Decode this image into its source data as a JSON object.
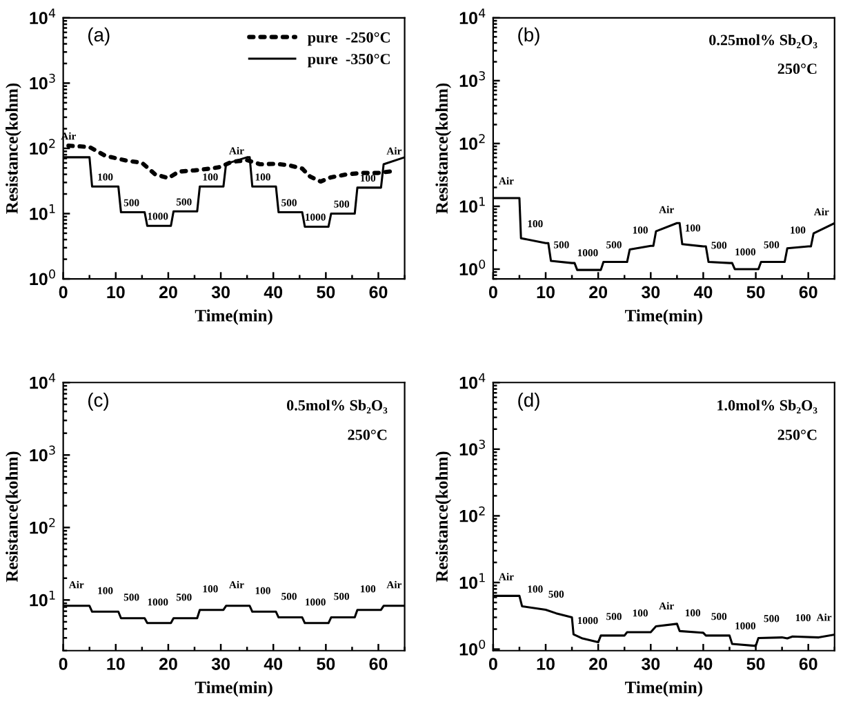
{
  "chart_data": [
    {
      "type": "line",
      "title": "(a)",
      "xlabel": "Time(min)",
      "ylabel": "Resistance(kohm)",
      "log": "y",
      "legend": "top right",
      "grid": false,
      "xlim": [
        0,
        65
      ],
      "xticks": [
        0,
        10,
        20,
        30,
        40,
        50,
        60
      ],
      "ylim": [
        1,
        10000
      ],
      "yticks": [
        {
          "value": 1,
          "label": "10$^{0}$"
        },
        {
          "value": 10,
          "label": "10$^{1}$"
        },
        {
          "value": 100,
          "label": "10$^{2}$"
        },
        {
          "value": 1000,
          "label": "10$^{3}$"
        },
        {
          "value": 10000,
          "label": "10$^{4}$"
        }
      ],
      "series": [
        {
          "name": "pure  -250°C",
          "color": "#000000",
          "line_style": "dotted",
          "x": [
            1,
            5,
            8,
            12,
            15,
            17.5,
            20,
            22,
            25,
            28,
            30,
            32,
            35,
            37.5,
            40.5,
            43,
            45.5,
            47,
            49,
            51,
            54,
            57,
            60,
            63
          ],
          "values": [
            110,
            105,
            77,
            65,
            60,
            40,
            35,
            44,
            46,
            49,
            52,
            62,
            66,
            57,
            58,
            55,
            49,
            37,
            31,
            36,
            40,
            42,
            42,
            45
          ]
        },
        {
          "name": "pure  -350°C",
          "color": "#000000",
          "line_style": "solid",
          "x": [
            0,
            5,
            5.5,
            10.5,
            11,
            15.5,
            16,
            20.5,
            21,
            25.5,
            26,
            30.5,
            31,
            35,
            35.5,
            36,
            40.5,
            41,
            45.5,
            46,
            50.5,
            51,
            55.5,
            56,
            60.5,
            61,
            65
          ],
          "values": [
            73,
            73,
            26,
            26,
            10.5,
            10.5,
            6.5,
            6.5,
            10.8,
            10.8,
            26,
            26,
            58,
            73,
            73,
            26,
            26,
            10.5,
            10.5,
            6.3,
            6.3,
            10,
            10,
            25,
            25,
            57,
            73
          ]
        }
      ],
      "annotations": [
        {
          "text": "Air",
          "x": 1,
          "y": 110
        },
        {
          "text": "100",
          "x": 8,
          "y": 26
        },
        {
          "text": "500",
          "x": 13,
          "y": 10.5
        },
        {
          "text": "1000",
          "x": 18,
          "y": 6.5
        },
        {
          "text": "500",
          "x": 23,
          "y": 10.8
        },
        {
          "text": "100",
          "x": 28,
          "y": 26
        },
        {
          "text": "Air",
          "x": 33,
          "y": 65.5
        },
        {
          "text": "100",
          "x": 38,
          "y": 26
        },
        {
          "text": "500",
          "x": 43,
          "y": 10.5
        },
        {
          "text": "1000",
          "x": 48,
          "y": 6.3
        },
        {
          "text": "500",
          "x": 53,
          "y": 10
        },
        {
          "text": "100",
          "x": 58,
          "y": 25
        },
        {
          "text": "Air",
          "x": 63,
          "y": 65
        }
      ]
    },
    {
      "type": "line",
      "title": "(b)",
      "xlabel": "Time(min)",
      "ylabel": "Resistance(kohm)",
      "log": "y",
      "grid": false,
      "xlim": [
        0,
        65
      ],
      "xticks": [
        0,
        10,
        20,
        30,
        40,
        50,
        60
      ],
      "ylim": [
        0.7,
        10000
      ],
      "yticks": [
        {
          "value": 1,
          "label": "10$^{0}$"
        },
        {
          "value": 10,
          "label": "10$^{1}$"
        },
        {
          "value": 100,
          "label": "10$^{2}$"
        },
        {
          "value": 1000,
          "label": "10$^{3}$"
        },
        {
          "value": 10000,
          "label": "10$^{4}$"
        }
      ],
      "series": [
        {
          "color": "#000000",
          "line_style": "solid",
          "x": [
            0,
            5,
            5.3,
            10,
            10.5,
            11,
            15,
            15.5,
            16,
            20,
            20.5,
            21,
            25,
            25.5,
            26,
            30,
            30.5,
            31,
            35,
            35.5,
            36,
            40,
            40.5,
            41,
            45,
            45.5,
            46,
            50,
            50.5,
            51,
            55,
            55.5,
            56,
            60,
            60.5,
            61,
            65
          ],
          "values": [
            13.5,
            13.5,
            3.1,
            2.6,
            2.6,
            1.35,
            1.25,
            1.25,
            0.97,
            0.97,
            0.97,
            1.3,
            1.3,
            1.3,
            2.05,
            2.35,
            2.35,
            4,
            5.4,
            5.4,
            2.5,
            2.3,
            2.3,
            1.3,
            1.25,
            1.25,
            1.0,
            1.0,
            1.0,
            1.3,
            1.3,
            1.3,
            2.15,
            2.3,
            2.3,
            3.7,
            5.4
          ]
        }
      ],
      "annotations": [
        "0.25mol% Sb₂O₃",
        "250°C",
        {
          "text": "Air",
          "x": 2.5,
          "y": 13.5
        },
        {
          "text": "100",
          "x": 8,
          "y": 2.81
        },
        {
          "text": "500",
          "x": 13,
          "y": 1.3
        },
        {
          "text": "1000",
          "x": 18,
          "y": 0.97
        },
        {
          "text": "500",
          "x": 23,
          "y": 1.3
        },
        {
          "text": "100",
          "x": 28,
          "y": 2.225
        },
        {
          "text": "Air",
          "x": 33,
          "y": 4.7
        },
        {
          "text": "100",
          "x": 38,
          "y": 2.4
        },
        {
          "text": "500",
          "x": 43,
          "y": 1.275
        },
        {
          "text": "1000",
          "x": 48,
          "y": 1.0
        },
        {
          "text": "500",
          "x": 53,
          "y": 1.3
        },
        {
          "text": "100",
          "x": 58,
          "y": 2.225
        },
        {
          "text": "Air",
          "x": 62.5,
          "y": 4.34
        }
      ]
    },
    {
      "type": "line",
      "title": "(c)",
      "xlabel": "Time(min)",
      "ylabel": "Resistance(kohm)",
      "log": "y",
      "grid": false,
      "xlim": [
        0,
        65
      ],
      "xticks": [
        0,
        10,
        20,
        30,
        40,
        50,
        60
      ],
      "ylim": [
        2,
        10000
      ],
      "yticks": [
        {
          "value": 10,
          "label": "10$^{1}$"
        },
        {
          "value": 100,
          "label": "10$^{2}$"
        },
        {
          "value": 1000,
          "label": "10$^{3}$"
        },
        {
          "value": 10000,
          "label": "10$^{4}$"
        }
      ],
      "series": [
        {
          "color": "#000000",
          "line_style": "solid",
          "x": [
            0,
            5,
            5.5,
            10,
            10.5,
            11,
            15,
            15.5,
            16,
            20,
            20.5,
            21,
            25,
            25.5,
            26,
            30,
            30.5,
            31,
            35,
            35.5,
            36,
            40,
            40.5,
            41,
            45,
            45.5,
            46,
            50,
            50.5,
            51,
            55,
            55.5,
            56,
            60,
            60.5,
            61,
            65
          ],
          "values": [
            8.3,
            8.3,
            6.9,
            6.9,
            6.9,
            5.6,
            5.6,
            5.6,
            4.8,
            4.8,
            4.8,
            5.6,
            5.6,
            5.6,
            7.3,
            7.3,
            7.3,
            8.3,
            8.3,
            8.3,
            6.9,
            6.9,
            6.9,
            5.75,
            5.75,
            5.75,
            4.8,
            4.8,
            4.8,
            5.75,
            5.75,
            5.75,
            7.3,
            7.3,
            7.3,
            8.3,
            8.3
          ]
        }
      ],
      "annotations": [
        "0.5mol% Sb₂O₃",
        "250°C",
        {
          "text": "Air",
          "x": 2.5,
          "y": 8.3
        },
        {
          "text": "100",
          "x": 8,
          "y": 6.9
        },
        {
          "text": "500",
          "x": 13,
          "y": 5.6
        },
        {
          "text": "1000",
          "x": 18,
          "y": 4.8
        },
        {
          "text": "500",
          "x": 23,
          "y": 5.6
        },
        {
          "text": "100",
          "x": 28,
          "y": 7.3
        },
        {
          "text": "Air",
          "x": 33,
          "y": 8.3
        },
        {
          "text": "100",
          "x": 38,
          "y": 6.9
        },
        {
          "text": "500",
          "x": 43,
          "y": 5.75
        },
        {
          "text": "1000",
          "x": 48,
          "y": 4.8
        },
        {
          "text": "500",
          "x": 53,
          "y": 5.75
        },
        {
          "text": "100",
          "x": 58,
          "y": 7.3
        },
        {
          "text": "Air",
          "x": 63,
          "y": 8.3
        }
      ]
    },
    {
      "type": "line",
      "title": "(d)",
      "xlabel": "Time(min)",
      "ylabel": "Resistance(kohm)",
      "log": "y",
      "grid": false,
      "xlim": [
        0,
        65
      ],
      "xticks": [
        0,
        10,
        20,
        30,
        40,
        50,
        60
      ],
      "ylim": [
        0.95,
        10000
      ],
      "yticks": [
        {
          "value": 1,
          "label": "10$^{0}$"
        },
        {
          "value": 10,
          "label": "10$^{1}$"
        },
        {
          "value": 100,
          "label": "10$^{2}$"
        },
        {
          "value": 1000,
          "label": "10$^{3}$"
        },
        {
          "value": 10000,
          "label": "10$^{4}$"
        }
      ],
      "series": [
        {
          "color": "#000000",
          "line_style": "solid",
          "x": [
            0,
            5,
            5.5,
            10,
            12,
            15,
            15.3,
            17,
            20,
            20.5,
            25,
            25.5,
            30,
            31,
            35,
            35.5,
            40,
            40.5,
            45,
            45.5,
            50,
            50.5,
            55,
            56,
            57,
            62,
            65
          ],
          "values": [
            6.3,
            6.3,
            4.4,
            3.9,
            3.45,
            3.0,
            1.67,
            1.45,
            1.27,
            1.6,
            1.6,
            1.8,
            1.8,
            2.2,
            2.4,
            1.87,
            1.76,
            1.6,
            1.6,
            1.2,
            1.12,
            1.47,
            1.5,
            1.45,
            1.55,
            1.5,
            1.65
          ]
        }
      ],
      "annotations": [
        "1.0mol% Sb₂O₃",
        "250°C",
        {
          "text": "Air",
          "x": 2.5,
          "y": 6.3
        },
        {
          "text": "100",
          "x": 8,
          "y": 4.12
        },
        {
          "text": "500",
          "x": 12,
          "y": 3.45
        },
        {
          "text": "1000",
          "x": 18,
          "y": 1.39
        },
        {
          "text": "500",
          "x": 23,
          "y": 1.6
        },
        {
          "text": "100",
          "x": 28,
          "y": 1.8
        },
        {
          "text": "Air",
          "x": 33,
          "y": 2.3
        },
        {
          "text": "100",
          "x": 38,
          "y": 1.81
        },
        {
          "text": "500",
          "x": 43,
          "y": 1.6
        },
        {
          "text": "1000",
          "x": 48,
          "y": 1.156
        },
        {
          "text": "500",
          "x": 53,
          "y": 1.487
        },
        {
          "text": "100",
          "x": 59,
          "y": 1.53
        },
        {
          "text": "Air",
          "x": 63,
          "y": 1.55
        }
      ]
    }
  ]
}
